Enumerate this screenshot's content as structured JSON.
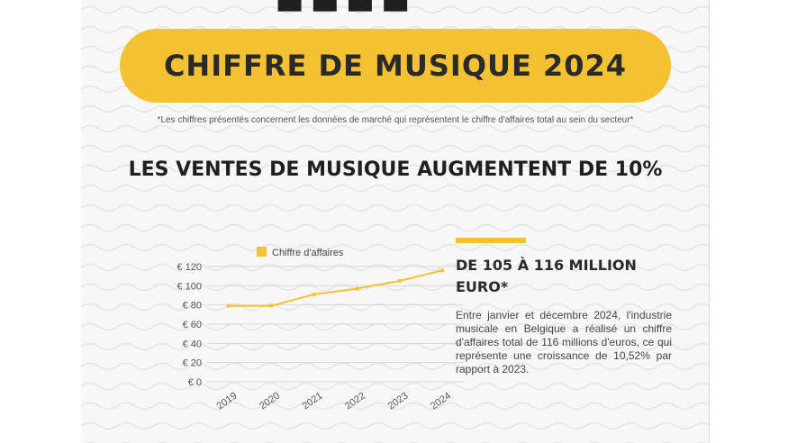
{
  "header": {
    "title": "CHIFFRE DE MUSIQUE 2024",
    "footnote": "*Les chiffres présentés concernent les données de marché qui représentent le chiffre d'affaires total au sein du secteur*",
    "subheading": "LES VENTES DE MUSIQUE AUGMENTENT DE 10%"
  },
  "stat": {
    "title": "DE 105 À 116 MILLION EURO*",
    "body": "Entre janvier et décembre 2024, l'industrie musicale en Belgique a réalisé un chiffre d'affaires total de 116 millions d'euros, ce qui représente une croissance de 10,52% par rapport à 2023."
  },
  "colors": {
    "accent": "#f3c132",
    "line": "#f3c132",
    "grid": "#d9d9d9",
    "text": "#2a2a2a"
  },
  "chart_data": {
    "type": "line",
    "title": "",
    "xlabel": "",
    "ylabel": "",
    "legend": "top",
    "grid": true,
    "ylim": [
      0,
      120
    ],
    "yticks": [
      0,
      20,
      40,
      60,
      80,
      100,
      120
    ],
    "ytick_prefix": "€ ",
    "categories": [
      "2019",
      "2020",
      "2021",
      "2022",
      "2023",
      "2024"
    ],
    "series": [
      {
        "name": "Chiffre d'affaires",
        "values": [
          79,
          79,
          91,
          97,
          105,
          116
        ]
      }
    ]
  }
}
